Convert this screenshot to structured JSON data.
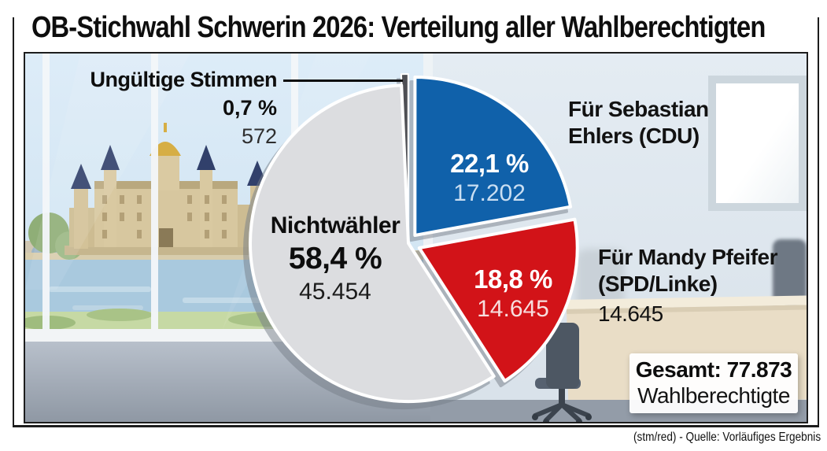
{
  "header": {
    "title": "OB-Stichwahl Schwerin 2026: Verteilung aller Wahlberechtigten"
  },
  "footer": {
    "credit": "(stm/red) - Quelle: Vorläufiges Ergebnis"
  },
  "total_box": {
    "line1": "Gesamt: 77.873",
    "line2": "Wahlberechtigte"
  },
  "callouts": {
    "invalid": {
      "title": "Ungültige Stimmen",
      "pct": "0,7 %",
      "count": "572"
    },
    "ehlers": {
      "line1": "Für Sebastian",
      "line2": "Ehlers (CDU)"
    },
    "pfeifer": {
      "line1": "Für Mandy Pfeifer",
      "line2": "(SPD/Linke)",
      "count": "14.645"
    },
    "nonvoters": {
      "title": "Nichtwähler",
      "pct": "58,4 %",
      "count": "45.454"
    },
    "ehlers_inner": {
      "pct": "22,1 %",
      "count": "17.202"
    },
    "pfeifer_inner": {
      "pct": "18,8 %",
      "count": "14.645"
    }
  },
  "chart_data": {
    "type": "pie",
    "title": "OB-Stichwahl Schwerin 2026: Verteilung aller Wahlberechtigten",
    "total": {
      "value": 77873,
      "label": "Gesamt: 77.873 Wahlberechtigte"
    },
    "source": "Vorläufiges Ergebnis",
    "start_angle_deg": -92.5,
    "legend_position": "none",
    "segments": [
      {
        "label": "Ungültige Stimmen",
        "pct": 0.7,
        "pct_label": "0,7 %",
        "value": 572,
        "value_label": "572",
        "color": "#4e4f54"
      },
      {
        "label": "Für Sebastian Ehlers (CDU)",
        "pct": 22.1,
        "pct_label": "22,1 %",
        "value": 17202,
        "value_label": "17.202",
        "color": "#1061aa"
      },
      {
        "label": "Für Mandy Pfeifer (SPD/Linke)",
        "pct": 18.8,
        "pct_label": "18,8 %",
        "value": 14645,
        "value_label": "14.645",
        "color": "#d21318"
      },
      {
        "label": "Nichtwähler",
        "pct": 58.4,
        "pct_label": "58,4 %",
        "value": 45454,
        "value_label": "45.454",
        "color": "#dcdde0"
      }
    ]
  }
}
